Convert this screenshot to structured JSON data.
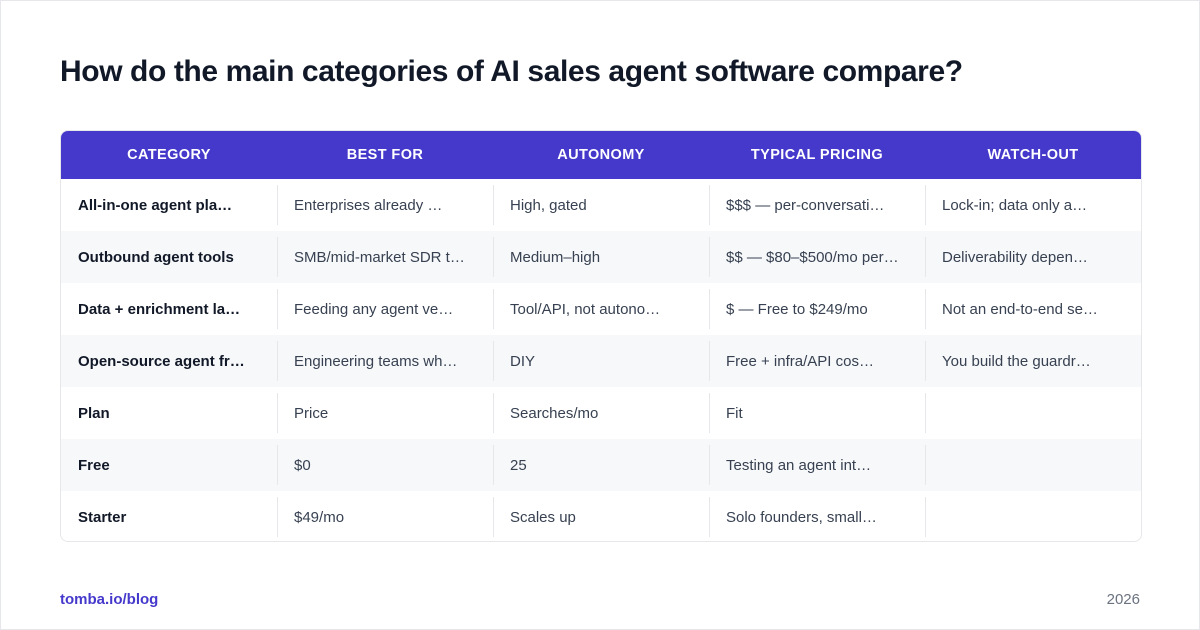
{
  "title": "How do the main categories of AI sales agent software compare?",
  "table": {
    "headers": [
      "CATEGORY",
      "BEST FOR",
      "AUTONOMY",
      "TYPICAL PRICING",
      "WATCH-OUT"
    ],
    "rows": [
      [
        "All-in-one agent pla…",
        "Enterprises already …",
        "High, gated",
        "$$$ — per-conversati…",
        "Lock-in; data only a…"
      ],
      [
        "Outbound agent tools",
        "SMB/mid-market SDR t…",
        "Medium–high",
        "$$ — $80–$500/mo per…",
        "Deliverability depen…"
      ],
      [
        "Data + enrichment la…",
        "Feeding any agent ve…",
        "Tool/API, not autono…",
        "$ — Free to $249/mo",
        "Not an end-to-end se…"
      ],
      [
        "Open-source agent fr…",
        "Engineering teams wh…",
        "DIY",
        "Free + infra/API cos…",
        "You build the guardr…"
      ],
      [
        "Plan",
        "Price",
        "Searches/mo",
        "Fit",
        ""
      ],
      [
        "Free",
        "$0",
        "25",
        "Testing an agent int…",
        ""
      ],
      [
        "Starter",
        "$49/mo",
        "Scales up",
        "Solo founders, small…",
        ""
      ]
    ]
  },
  "footer": {
    "link": "tomba.io/blog",
    "year": "2026"
  },
  "colors": {
    "accent": "#4539cc",
    "stripe": "#f7f8fa"
  }
}
